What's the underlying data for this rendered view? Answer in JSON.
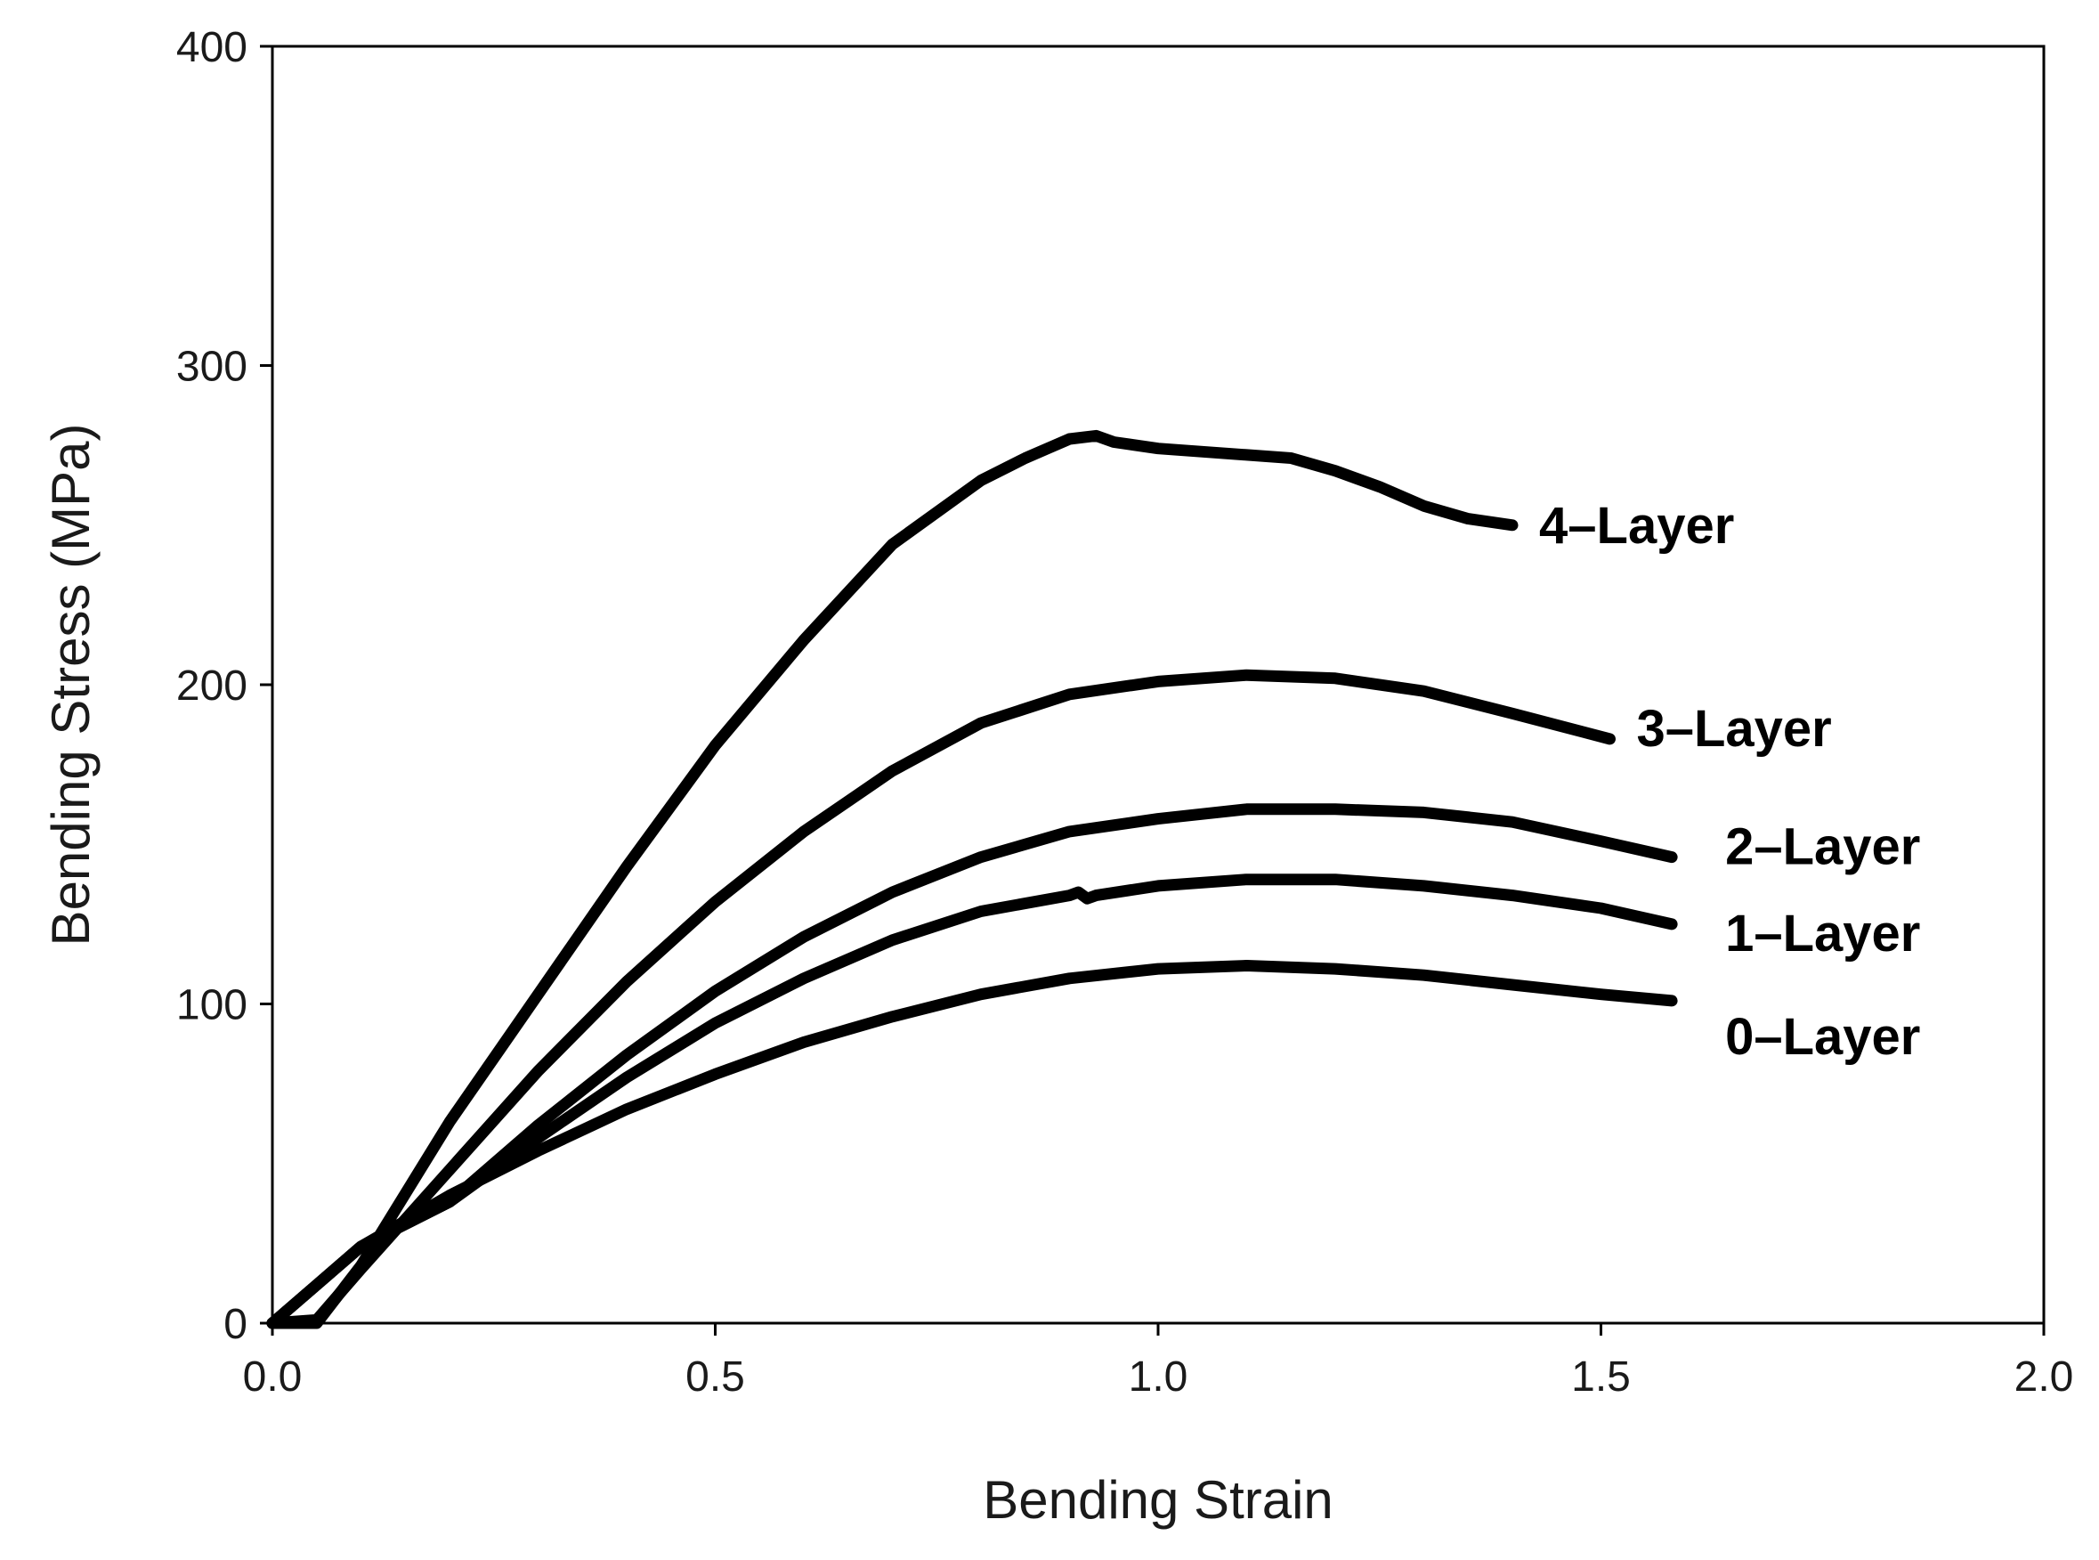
{
  "chart_data": {
    "type": "line",
    "title": "",
    "xlabel": "Bending Strain",
    "ylabel": "Bending Stress (MPa)",
    "xlim": [
      0.0,
      2.0
    ],
    "ylim": [
      0,
      400
    ],
    "xticks": [
      "0.0",
      "0.5",
      "1.0",
      "1.5",
      "2.0"
    ],
    "yticks": [
      "0",
      "100",
      "200",
      "300",
      "400"
    ],
    "grid": false,
    "legend": "inline labels at line ends",
    "line_color": "#000000",
    "series": [
      {
        "name": "0–Layer",
        "x": [
          0.0,
          0.05,
          0.1,
          0.2,
          0.3,
          0.4,
          0.5,
          0.6,
          0.7,
          0.8,
          0.9,
          1.0,
          1.1,
          1.2,
          1.3,
          1.4,
          1.5,
          1.58
        ],
        "y": [
          0,
          12,
          24,
          40,
          54,
          67,
          78,
          88,
          96,
          103,
          108,
          111,
          112,
          111,
          109,
          106,
          103,
          101
        ]
      },
      {
        "name": "1–Layer",
        "x": [
          0.0,
          0.05,
          0.1,
          0.2,
          0.3,
          0.4,
          0.5,
          0.6,
          0.7,
          0.8,
          0.9,
          0.91,
          0.92,
          0.93,
          1.0,
          1.1,
          1.2,
          1.3,
          1.4,
          1.5,
          1.58
        ],
        "y": [
          0,
          12,
          24,
          38,
          58,
          77,
          94,
          108,
          120,
          129,
          134,
          135,
          133,
          134,
          137,
          139,
          139,
          137,
          134,
          130,
          125
        ]
      },
      {
        "name": "2–Layer",
        "x": [
          0.0,
          0.05,
          0.1,
          0.2,
          0.3,
          0.4,
          0.5,
          0.6,
          0.7,
          0.8,
          0.9,
          1.0,
          1.1,
          1.2,
          1.3,
          1.4,
          1.5,
          1.58
        ],
        "y": [
          0,
          12,
          24,
          38,
          62,
          84,
          104,
          121,
          135,
          146,
          154,
          158,
          161,
          161,
          160,
          157,
          151,
          146
        ]
      },
      {
        "name": "3–Layer",
        "x": [
          0.0,
          0.05,
          0.1,
          0.2,
          0.3,
          0.4,
          0.5,
          0.6,
          0.7,
          0.8,
          0.9,
          1.0,
          1.1,
          1.2,
          1.3,
          1.4,
          1.51
        ],
        "y": [
          0,
          1,
          17,
          48,
          79,
          107,
          132,
          154,
          173,
          188,
          197,
          201,
          203,
          202,
          198,
          191,
          183
        ]
      },
      {
        "name": "4–Layer",
        "x": [
          0.0,
          0.05,
          0.1,
          0.2,
          0.3,
          0.4,
          0.5,
          0.6,
          0.7,
          0.8,
          0.85,
          0.9,
          0.93,
          0.95,
          1.0,
          1.05,
          1.1,
          1.15,
          1.2,
          1.25,
          1.3,
          1.35,
          1.4
        ],
        "y": [
          0,
          0,
          18,
          63,
          103,
          143,
          181,
          214,
          244,
          264,
          271,
          277,
          278,
          276,
          274,
          273,
          272,
          271,
          267,
          262,
          256,
          252,
          250
        ]
      }
    ]
  }
}
